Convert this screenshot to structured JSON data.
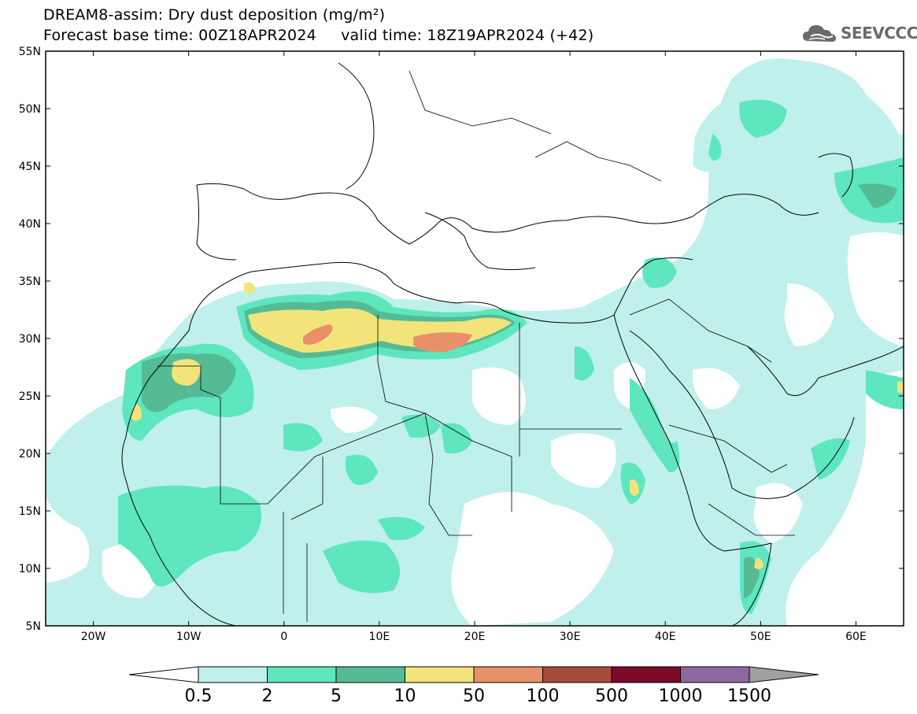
{
  "header": {
    "title_line1": "DREAM8-assim: Dry dust deposition (mg/m²)",
    "title_line2": "Forecast base time: 00Z18APR2024     valid time: 18Z19APR2024 (+42)"
  },
  "logo": {
    "text": "SEEVCCC",
    "icon": "cloud-logo-icon"
  },
  "map": {
    "lon_range": [
      -25,
      65
    ],
    "lat_range": [
      5,
      55
    ],
    "lat_ticks": [
      "5N",
      "10N",
      "15N",
      "20N",
      "25N",
      "30N",
      "35N",
      "40N",
      "45N",
      "50N",
      "55N"
    ],
    "lon_ticks": [
      "20W",
      "10W",
      "0",
      "10E",
      "20E",
      "30E",
      "40E",
      "50E",
      "60E"
    ]
  },
  "colorbar": {
    "labels": [
      "0.5",
      "2",
      "5",
      "10",
      "50",
      "100",
      "500",
      "1000",
      "1500"
    ],
    "colors": [
      "#bff0ec",
      "#5ee6be",
      "#55bb94",
      "#f2e47a",
      "#e8906a",
      "#a84a3a",
      "#7d0a2a",
      "#8c6aa0"
    ],
    "under_color": "#ffffff",
    "over_color": "#a0a0a0"
  }
}
